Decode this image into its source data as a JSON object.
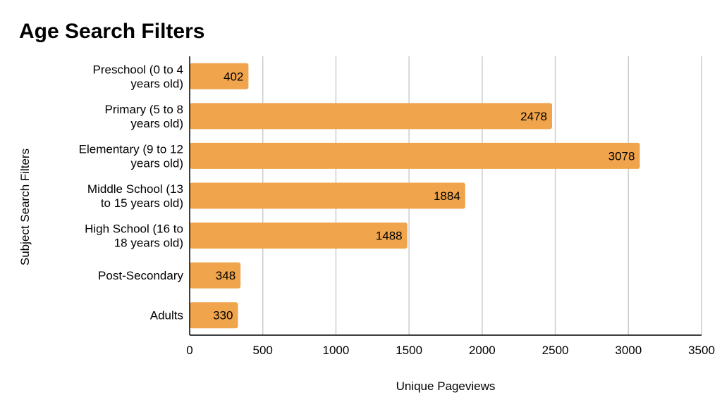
{
  "chart_data": {
    "type": "bar",
    "orientation": "horizontal",
    "title": "Age Search Filters",
    "xlabel": "Unique Pageviews",
    "ylabel": "Subject Search Filters",
    "categories": [
      [
        "Preschool (0 to 4",
        "years old)"
      ],
      [
        "Primary (5 to 8",
        "years old)"
      ],
      [
        "Elementary (9 to 12",
        "years old)"
      ],
      [
        "Middle School (13",
        "to 15 years old)"
      ],
      [
        "High School (16 to",
        "18 years old)"
      ],
      [
        "Post-Secondary"
      ],
      [
        "Adults"
      ]
    ],
    "values": [
      402,
      2478,
      3078,
      1884,
      1488,
      348,
      330
    ],
    "value_labels": [
      "402",
      "2478",
      "3078",
      "1884",
      "1488",
      "348",
      "330"
    ],
    "xlim": [
      0,
      3500
    ],
    "xticks": [
      0,
      500,
      1000,
      1500,
      2000,
      2500,
      3000,
      3500
    ],
    "xtick_labels": [
      "0",
      "500",
      "1000",
      "1500",
      "2000",
      "2500",
      "3000",
      "3500"
    ],
    "grid": "vertical",
    "legend": "none",
    "bar_color": "#F0A44B",
    "grid_color": "#CCCCCC",
    "axis_color": "#000000"
  }
}
